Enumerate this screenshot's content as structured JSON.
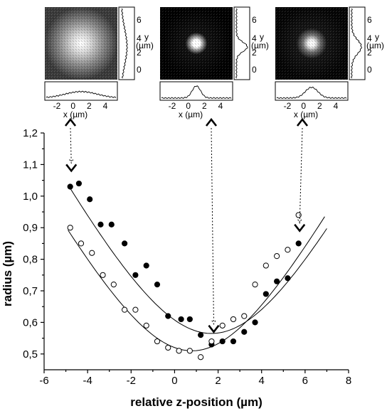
{
  "chart_data": {
    "type": "scatter",
    "title": "",
    "xlabel": "relative z-position (µm)",
    "ylabel": "radius (µm)",
    "xlim": [
      -6,
      8
    ],
    "ylim": [
      0.45,
      1.2
    ],
    "x_ticks": [
      "-6",
      "-4",
      "-2",
      "0",
      "2",
      "4",
      "6",
      "8"
    ],
    "y_ticks": [
      "0,5",
      "0,6",
      "0,7",
      "0,8",
      "0,9",
      "1,0",
      "1,1",
      "1,2"
    ],
    "series": [
      {
        "marker": "filled-circle",
        "points": [
          [
            -4.8,
            1.03
          ],
          [
            -4.4,
            1.04
          ],
          [
            -3.9,
            0.99
          ],
          [
            -3.4,
            0.91
          ],
          [
            -2.9,
            0.91
          ],
          [
            -2.3,
            0.85
          ],
          [
            -1.8,
            0.75
          ],
          [
            -1.3,
            0.78
          ],
          [
            -0.8,
            0.72
          ],
          [
            -0.3,
            0.62
          ],
          [
            0.3,
            0.61
          ],
          [
            0.7,
            0.61
          ],
          [
            1.2,
            0.56
          ],
          [
            1.7,
            0.53
          ],
          [
            2.2,
            0.54
          ],
          [
            2.7,
            0.54
          ],
          [
            3.2,
            0.57
          ],
          [
            3.7,
            0.6
          ],
          [
            4.2,
            0.69
          ],
          [
            4.7,
            0.73
          ],
          [
            5.2,
            0.74
          ],
          [
            5.7,
            0.85
          ]
        ],
        "fit": {
          "vertex_x": 1.7,
          "vertex_y": 0.565,
          "k": 0.0173,
          "range": [
            -4.9,
            7.0
          ]
        }
      },
      {
        "marker": "open-circle",
        "points": [
          [
            -4.8,
            0.9
          ],
          [
            -4.3,
            0.85
          ],
          [
            -3.8,
            0.82
          ],
          [
            -3.3,
            0.75
          ],
          [
            -2.8,
            0.72
          ],
          [
            -2.3,
            0.64
          ],
          [
            -1.8,
            0.64
          ],
          [
            -1.3,
            0.59
          ],
          [
            -0.8,
            0.54
          ],
          [
            -0.3,
            0.52
          ],
          [
            0.2,
            0.51
          ],
          [
            0.7,
            0.51
          ],
          [
            1.2,
            0.49
          ],
          [
            1.7,
            0.54
          ],
          [
            2.2,
            0.59
          ],
          [
            2.7,
            0.61
          ],
          [
            3.2,
            0.62
          ],
          [
            3.7,
            0.72
          ],
          [
            4.2,
            0.78
          ],
          [
            4.7,
            0.81
          ],
          [
            5.2,
            0.83
          ],
          [
            5.7,
            0.94
          ]
        ],
        "fit": {
          "vertex_x": 0.8,
          "vertex_y": 0.51,
          "k": 0.0165,
          "range": [
            -4.9,
            6.9
          ]
        }
      }
    ],
    "markers": [
      {
        "x": -4.75,
        "y": 1.08
      },
      {
        "x": 1.8,
        "y": 0.57
      },
      {
        "x": 5.75,
        "y": 0.89
      }
    ],
    "insets": [
      {
        "name": "spot-left",
        "spot": "diffuse",
        "y_ticks": [
          "6",
          "4",
          "2",
          "0"
        ],
        "y_label": "y",
        "y_unit": "(µm)",
        "x_ticks": [
          "-2",
          "0",
          "2",
          "4"
        ],
        "x_label": "x (µm)"
      },
      {
        "name": "spot-center",
        "spot": "focused",
        "y_ticks": [
          "6",
          "4",
          "2",
          "0"
        ],
        "y_label": "y",
        "y_unit": "(µm)",
        "x_ticks": [
          "-2",
          "0",
          "2",
          "4"
        ],
        "x_label": "x (µm)"
      },
      {
        "name": "spot-right",
        "spot": "medium",
        "y_ticks": [
          "6",
          "4",
          "2",
          "0"
        ],
        "y_label": "y",
        "y_unit": "(µm)",
        "x_ticks": [
          "-2",
          "0",
          "2",
          "4"
        ],
        "x_label": "x (µm)"
      }
    ]
  }
}
